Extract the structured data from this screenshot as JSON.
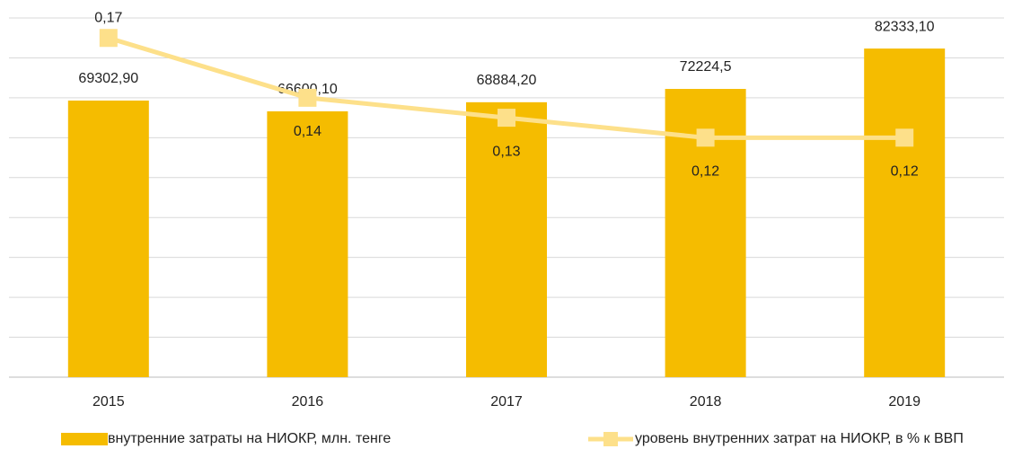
{
  "chart_data": {
    "type": "bar-line",
    "categories": [
      "2015",
      "2016",
      "2017",
      "2018",
      "2019"
    ],
    "series": [
      {
        "name": "внутренние затраты на НИОКР, млн. тенге",
        "type": "bar",
        "color": "#f5bc00",
        "values": [
          69302.9,
          66600.1,
          68884.2,
          72224.5,
          82333.1
        ],
        "value_labels": [
          "69302,90",
          "66600,10",
          "68884,20",
          "72224,5",
          "82333,10"
        ]
      },
      {
        "name": "уровень внутренних затрат на НИОКР, в % к ВВП",
        "type": "line",
        "axis": "y2",
        "color": "#fde08a",
        "values": [
          0.17,
          0.14,
          0.13,
          0.12,
          0.12
        ],
        "value_labels": [
          "0,17",
          "0,14",
          "0,13",
          "0,12",
          "0,12"
        ]
      }
    ],
    "ylim": [
      0,
      90000
    ],
    "yticks": [
      0,
      10000,
      20000,
      30000,
      40000,
      50000,
      60000,
      70000,
      80000,
      90000
    ],
    "y2lim": [
      0,
      0.18
    ],
    "grid": true,
    "legend": "bottom"
  }
}
